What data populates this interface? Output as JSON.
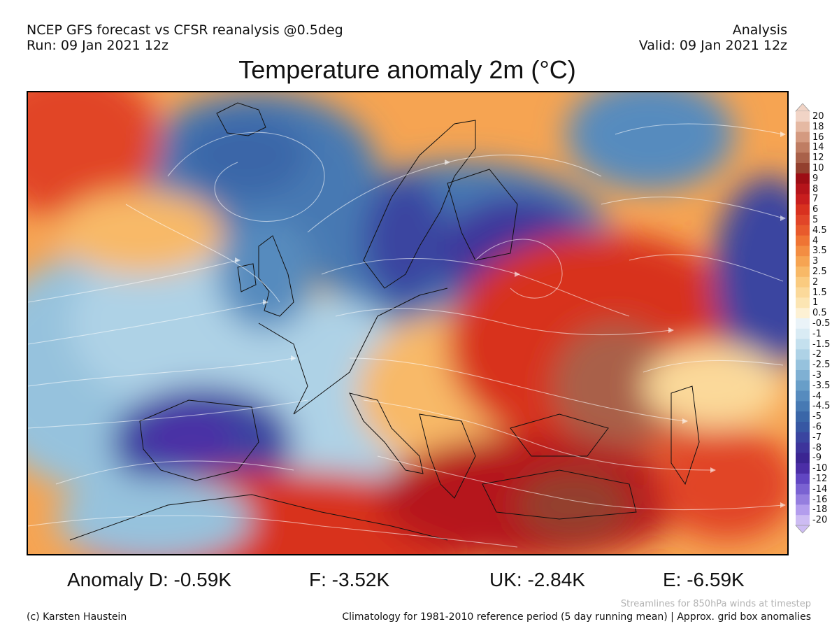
{
  "header": {
    "line1_left": "NCEP GFS forecast vs CFSR reanalysis @0.5deg",
    "line2_left": "Run: 09 Jan 2021 12z",
    "line1_right": "Analysis",
    "line2_right": "Valid: 09 Jan 2021 12z"
  },
  "title": "Temperature anomaly 2m (°C)",
  "colorbar": {
    "labels": [
      "20",
      "18",
      "16",
      "14",
      "12",
      "10",
      "9",
      "8",
      "7",
      "6",
      "5",
      "4.5",
      "4",
      "3.5",
      "3",
      "2.5",
      "2",
      "1.5",
      "1",
      "0.5",
      "-0.5",
      "-1",
      "-1.5",
      "-2",
      "-2.5",
      "-3",
      "-3.5",
      "-4",
      "-4.5",
      "-5",
      "-6",
      "-7",
      "-8",
      "-9",
      "-10",
      "-12",
      "-14",
      "-16",
      "-18",
      "-20"
    ],
    "colors": [
      "#f1d4c6",
      "#e5b9a3",
      "#d49a80",
      "#bf7d63",
      "#a9614a",
      "#93402e",
      "#9d0d14",
      "#b5141a",
      "#c81e1e",
      "#d8311f",
      "#e14528",
      "#e85a2c",
      "#ef7434",
      "#f38d42",
      "#f6a452",
      "#f8b967",
      "#facb80",
      "#fbd99a",
      "#fce5b3",
      "#fdf1d4",
      "#eaf3f8",
      "#d9ebf4",
      "#c4e0ee",
      "#aed2e6",
      "#96c2dd",
      "#7fb0d3",
      "#689ec8",
      "#568bbe",
      "#4779b3",
      "#3a66a8",
      "#3757a3",
      "#3a45a0",
      "#3d349b",
      "#3b2592",
      "#4b2ea6",
      "#6146c2",
      "#7a62d2",
      "#957edf",
      "#b39ded",
      "#cdbcf3"
    ],
    "accent_cold": "#3b2592",
    "accent_warm": "#b5141a"
  },
  "stats": {
    "d": "Anomaly D: -0.59K",
    "f": "F: -3.52K",
    "uk": "UK: -2.84K",
    "e": "E: -6.59K"
  },
  "footer": {
    "credit": "(c) Karsten Haustein",
    "streamlines_note": "Streamlines for 850hPa winds at timestep",
    "climatology": "Climatology for 1981-2010 reference period (5 day running mean) | Approx. grid box anomalies"
  }
}
